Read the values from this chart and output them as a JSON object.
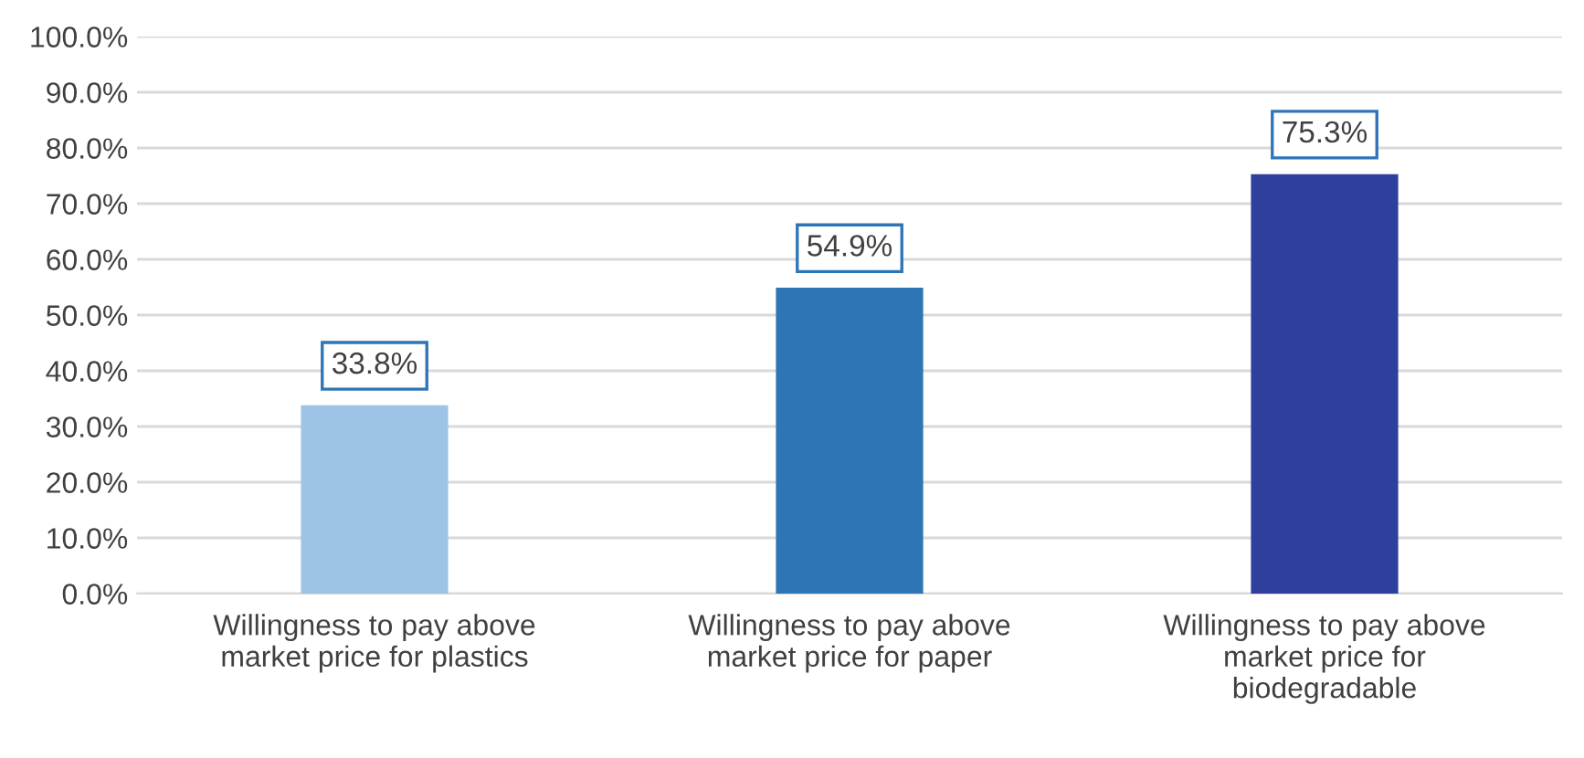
{
  "chart_data": {
    "type": "bar",
    "categories": [
      "Willingness to pay above\nmarket price for plastics",
      "Willingness to pay above\nmarket price for paper",
      "Willingness to pay above\nmarket price for\nbiodegradable"
    ],
    "values": [
      33.8,
      54.9,
      75.3
    ],
    "colors": [
      "#9dc3e6",
      "#2e75b6",
      "#2f3f9e"
    ],
    "value_labels": [
      "33.8%",
      "54.9%",
      "75.3%"
    ],
    "ylim": [
      0,
      100
    ],
    "yticks": [
      {
        "value": 0,
        "label": "0.0%"
      },
      {
        "value": 10,
        "label": "10.0%"
      },
      {
        "value": 20,
        "label": "20.0%"
      },
      {
        "value": 30,
        "label": "30.0%"
      },
      {
        "value": 40,
        "label": "40.0%"
      },
      {
        "value": 50,
        "label": "50.0%"
      },
      {
        "value": 60,
        "label": "60.0%"
      },
      {
        "value": 70,
        "label": "70.0%"
      },
      {
        "value": 80,
        "label": "80.0%"
      },
      {
        "value": 90,
        "label": "90.0%"
      },
      {
        "value": 100,
        "label": "100.0%"
      }
    ],
    "grid": "y",
    "legend": false
  }
}
